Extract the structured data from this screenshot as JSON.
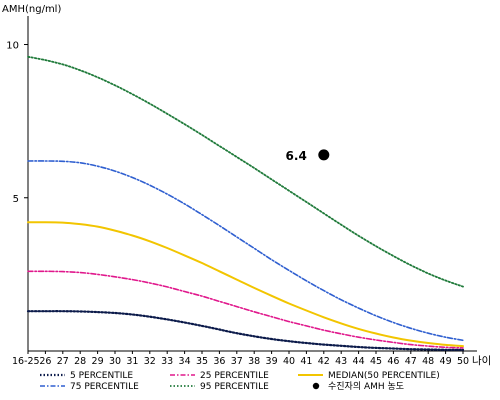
{
  "chart_data": {
    "type": "line",
    "ylabel": "AMH(ng/ml)",
    "xlabel": "나이",
    "x_ticks": [
      "16-25",
      "26",
      "27",
      "28",
      "29",
      "30",
      "31",
      "32",
      "33",
      "34",
      "35",
      "36",
      "37",
      "38",
      "39",
      "40",
      "41",
      "42",
      "43",
      "44",
      "45",
      "46",
      "47",
      "48",
      "49",
      "50"
    ],
    "y_ticks": [
      5,
      10
    ],
    "ylim": [
      0,
      10.8
    ],
    "xlim": [
      25,
      50
    ],
    "grid": false,
    "legend_position": "bottom",
    "colors": {
      "p5": "#0b1a4a",
      "p25": "#e0188c",
      "median": "#f2c500",
      "p75": "#2f5fd0",
      "p95": "#1f7a3a",
      "marker": "#000000",
      "axis": "#000000"
    },
    "series": [
      {
        "key": "p5",
        "name": "5 PERCENTILE",
        "x": [
          25,
          26,
          27,
          28,
          29,
          30,
          31,
          32,
          33,
          34,
          35,
          36,
          37,
          38,
          39,
          40,
          41,
          42,
          43,
          44,
          45,
          46,
          47,
          48,
          49,
          50
        ],
        "values": [
          1.3,
          1.3,
          1.3,
          1.29,
          1.27,
          1.24,
          1.19,
          1.12,
          1.03,
          0.93,
          0.82,
          0.7,
          0.58,
          0.48,
          0.39,
          0.32,
          0.26,
          0.21,
          0.17,
          0.13,
          0.1,
          0.08,
          0.06,
          0.05,
          0.04,
          0.04
        ]
      },
      {
        "key": "p25",
        "name": "25 PERCENTILE",
        "x": [
          25,
          26,
          27,
          28,
          29,
          30,
          31,
          32,
          33,
          34,
          35,
          36,
          37,
          38,
          39,
          40,
          41,
          42,
          43,
          44,
          45,
          46,
          47,
          48,
          49,
          50
        ],
        "values": [
          2.6,
          2.6,
          2.59,
          2.56,
          2.5,
          2.42,
          2.33,
          2.22,
          2.09,
          1.94,
          1.79,
          1.62,
          1.45,
          1.28,
          1.12,
          0.96,
          0.82,
          0.68,
          0.56,
          0.45,
          0.36,
          0.28,
          0.21,
          0.16,
          0.12,
          0.1
        ]
      },
      {
        "key": "median",
        "name": "MEDIAN(50 PERCENTILE)",
        "x": [
          25,
          26,
          27,
          28,
          29,
          30,
          31,
          32,
          33,
          34,
          35,
          36,
          37,
          38,
          39,
          40,
          41,
          42,
          43,
          44,
          45,
          46,
          47,
          48,
          49,
          50
        ],
        "values": [
          4.2,
          4.2,
          4.19,
          4.14,
          4.06,
          3.93,
          3.77,
          3.58,
          3.36,
          3.12,
          2.87,
          2.6,
          2.33,
          2.06,
          1.8,
          1.55,
          1.32,
          1.1,
          0.9,
          0.72,
          0.57,
          0.44,
          0.34,
          0.26,
          0.2,
          0.16
        ]
      },
      {
        "key": "p75",
        "name": "75 PERCENTILE",
        "x": [
          25,
          26,
          27,
          28,
          29,
          30,
          31,
          32,
          33,
          34,
          35,
          36,
          37,
          38,
          39,
          40,
          41,
          42,
          43,
          44,
          45,
          46,
          47,
          48,
          49,
          50
        ],
        "values": [
          6.2,
          6.2,
          6.19,
          6.14,
          6.03,
          5.87,
          5.66,
          5.41,
          5.12,
          4.8,
          4.45,
          4.09,
          3.72,
          3.35,
          2.98,
          2.63,
          2.29,
          1.97,
          1.67,
          1.4,
          1.15,
          0.93,
          0.74,
          0.58,
          0.45,
          0.35
        ]
      },
      {
        "key": "p95",
        "name": "95 PERCENTILE",
        "x": [
          25,
          26,
          27,
          28,
          29,
          30,
          31,
          32,
          33,
          34,
          35,
          36,
          37,
          38,
          39,
          40,
          41,
          42,
          43,
          44,
          45,
          46,
          47,
          48,
          49,
          50
        ],
        "values": [
          9.6,
          9.49,
          9.35,
          9.16,
          8.93,
          8.67,
          8.38,
          8.07,
          7.74,
          7.4,
          7.05,
          6.69,
          6.33,
          5.97,
          5.6,
          5.23,
          4.86,
          4.49,
          4.12,
          3.76,
          3.42,
          3.1,
          2.8,
          2.53,
          2.3,
          2.1
        ]
      }
    ],
    "marker": {
      "name": "수진자의 AMH 농도",
      "x": 42,
      "y": 6.4,
      "label": "6.4"
    }
  }
}
